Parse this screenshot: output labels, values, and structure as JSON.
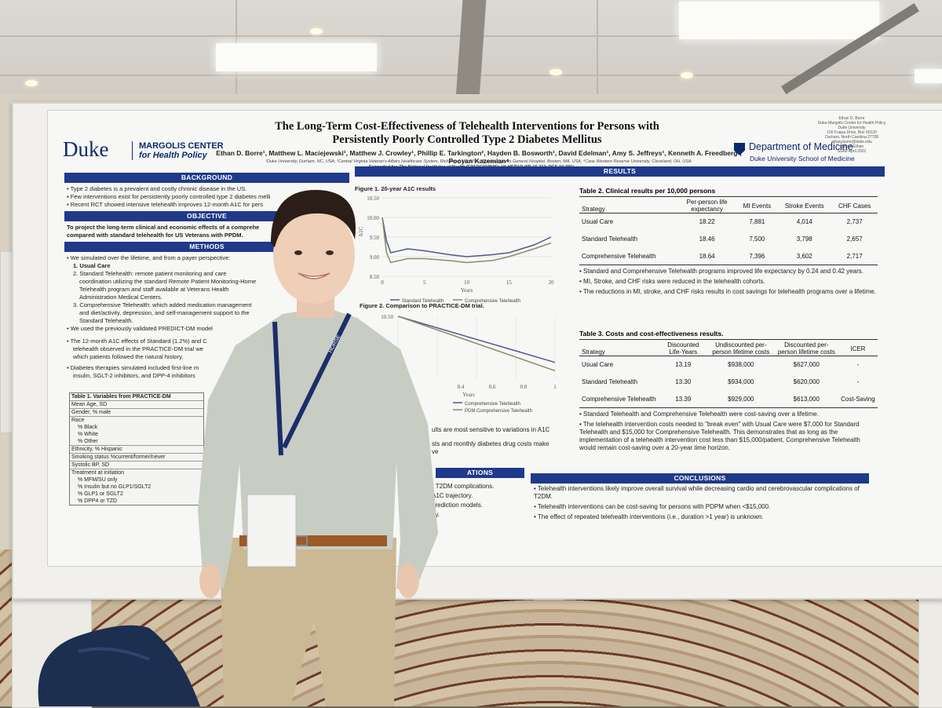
{
  "poster": {
    "title_line1": "The Long-Term Cost-Effectiveness of Telehealth Interventions for Persons with",
    "title_line2": "Persistently Poorly Controlled Type 2 Diabetes Mellitus",
    "authors": "Ethan D. Borre¹, Matthew L. Maciejewski¹, Matthew J. Crowley¹, Phillip E. Tarkington², Hayden B. Bosworth¹, David Edelman¹, Amy S. Jeffreys¹, Kenneth A. Freedberg³, Pooyan Kazemian⁴",
    "affiliations": "¹Duke University, Durham, NC, USA; ²Central Virginia Veteran's Affairs Healthcare System, Richmond, VA, USA; ³Massachusetts General Hospital, Boston, MA, USA; ⁴Case Western Reserve University, Cleveland, OH, USA.",
    "support": "Supported by: The National Institutes of Health (F30 DC019846); VA HSR&D (IIR 16-213; RCS 10-391)",
    "logo_duke": "Duke",
    "logo_margolis_1": "MARGOLIS CENTER",
    "logo_margolis_2": "for Health Policy",
    "dept": "Department of Medicine",
    "dept_sub": "Duke University School of Medicine",
    "corner_1": "Ethan D. Borre",
    "corner_2": "Duke-Margolis Center for Health Policy",
    "corner_3": "Duke University",
    "corner_4": "100 Fuqua Drive, Box 90120",
    "corner_5": "Durham, North Carolina 27708",
    "corner_6": "ethan.borre@duke.edu",
    "corner_7": "@BorreEthan",
    "corner_8": "SGIM April 2022"
  },
  "sections": {
    "background": "BACKGROUND",
    "objective": "OBJECTIVE",
    "methods": "METHODS",
    "results": "RESULTS",
    "conclusions": "CONCLUSIONS",
    "limitations": "ATIONS"
  },
  "background_items": [
    "Type 2 diabetes is a prevalent and costly chronic disease in the US.",
    "Few interventions exist for persistently poorly controlled type 2 diabetes melli",
    "Recent RCT showed intensive telehealth improves 12-month A1C for pers"
  ],
  "objective_text_1": "To project the long-term clinical and economic effects of a comprehe",
  "objective_text_2": "compared with standard telehealth for US Veterans with PPDM.",
  "methods_items": {
    "m1": "We simulated over the lifetime, and from a payer perspective:",
    "m1a": "1. Usual Care",
    "m1b": "2. Standard Telehealth: remote patient monitoring and care",
    "m1b2": "coordination utilizing the standard Remote Patient Monitoring-Home",
    "m1b3": "Telehealth program and staff available at Veterans Health",
    "m1b4": "Administration Medical Centers.",
    "m1c": "3. Comprehensive Telehealth: which added medication management",
    "m1c2": "and diet/activity, depression, and self-management support to the",
    "m1c3": "Standard Telehealth.",
    "m2": "We used the previously validated PREDICT-DM model",
    "m3": "The 12-month A1C effects of Standard (1.2%) and C",
    "m3b": "telehealth observed in the PRACTICE-DM trial we",
    "m3c": "which patients followed the natural history.",
    "m4": "Diabetes therapies simulated included first-line m",
    "m4b": "insulin, SGLT-2 inhibitors, and DPP-4 inhibitors"
  },
  "table1": {
    "title": "Table 1. Variables from PRACTICE-DM",
    "rows": [
      "Mean Age, SD",
      "Gender, % male",
      "Race",
      "% Black",
      "% White",
      "% Other",
      "Ethnicity, % Hispanic",
      "Smoking status %current/former/never",
      "Systolic BP, SD",
      "Treatment at initiation",
      "% MFM/SU only",
      "% Insulin but no GLP1/SGLT2",
      "% GLP1 or SGLT2",
      "% DPP4 or TZD"
    ]
  },
  "figure1": {
    "title": "Figure 1. 20-year A1C results"
  },
  "figure2": {
    "title": "Figure 2. Comparison to PRACTICE-DM trial."
  },
  "chart_data": [
    {
      "type": "line",
      "title": "Figure 1. 20-year A1C results",
      "xlabel": "Years",
      "ylabel": "A1C",
      "xlim": [
        0,
        20
      ],
      "ylim": [
        8.5,
        10.5
      ],
      "x_ticks": [
        "0",
        "5",
        "10",
        "15",
        "20"
      ],
      "y_ticks": [
        "10.50",
        "10.00",
        "9.50",
        "9.00",
        "8.50"
      ],
      "series": [
        {
          "name": "Standard Telehealth",
          "x": [
            0,
            0.5,
            1,
            3,
            5,
            8,
            10,
            13,
            15,
            18,
            20
          ],
          "y": [
            10.0,
            9.4,
            9.1,
            9.2,
            9.15,
            9.05,
            9.0,
            9.05,
            9.1,
            9.3,
            9.5
          ]
        },
        {
          "name": "Comprehensive Telehealth",
          "x": [
            0,
            0.5,
            1,
            3,
            5,
            8,
            10,
            13,
            15,
            18,
            20
          ],
          "y": [
            10.0,
            9.1,
            8.85,
            8.95,
            8.95,
            8.9,
            8.85,
            8.9,
            9.0,
            9.2,
            9.35
          ]
        }
      ],
      "legend": "bottom"
    },
    {
      "type": "line",
      "title": "Figure 2. Comparison to PRACTICE-DM trial.",
      "xlabel": "Years",
      "xlim": [
        0,
        1
      ],
      "x_ticks": [
        "0.4",
        "0.6",
        "0.8",
        "1"
      ],
      "y_ticks": [
        "10.50"
      ],
      "series": [
        {
          "name": "Comprehensive Telehealth",
          "x": [
            0,
            1
          ],
          "y": [
            10.5,
            9.4
          ]
        },
        {
          "name": "PDM Comprehensive Telehealth",
          "x": [
            0,
            1
          ],
          "y": [
            10.5,
            9.2
          ]
        }
      ],
      "legend": "bottom"
    }
  ],
  "results_text": {
    "r1": "ults are most sensitive to variations in A1C",
    "r2": "sts and monthly diabetes drug costs make",
    "r3": "ve"
  },
  "table2": {
    "title": "Table 2. Clinical results per 10,000 persons",
    "headers": [
      "Strategy",
      "Per-person life expectancy",
      "MI Events",
      "Stroke Events",
      "CHF Cases"
    ],
    "rows": [
      [
        "Usual Care",
        "18.22",
        "7,881",
        "4,014",
        "2,737"
      ],
      [
        "Standard Telehealth",
        "18.46",
        "7,500",
        "3,798",
        "2,657"
      ],
      [
        "Comprehensive Telehealth",
        "18.64",
        "7,396",
        "3,602",
        "2,717"
      ]
    ],
    "notes": [
      "Standard and Comprehensive Telehealth programs improved life expectancy by 0.24 and 0.42 years.",
      "MI, Stroke, and CHF risks were reduced in the telehealth cohorts.",
      "The reductions in MI, stroke, and CHF risks results in cost savings for telehealth programs over a lifetime."
    ]
  },
  "table3": {
    "title": "Table 3.  Costs and cost-effectiveness results.",
    "headers": [
      "Strategy",
      "Discounted Life-Years",
      "Undiscounted per-person lifetime costs",
      "Discounted per-person lifetime costs",
      "ICER"
    ],
    "rows": [
      [
        "Usual Care",
        "13.19",
        "$938,000",
        "$627,000",
        "-"
      ],
      [
        "Standard Telehealth",
        "13.30",
        "$934,000",
        "$620,000",
        "-"
      ],
      [
        "Comprehensive Telehealth",
        "13.39",
        "$929,000",
        "$613,000",
        "Cost-Saving"
      ]
    ],
    "notes": [
      "Standard Telehealth and Comprehensive Telehealth were cost-saving over a lifetime.",
      "The telehealth intervention costs needed to \"break even\" with Usual Care were $7,000 for Standard Telehealth and $15,000 for Comprehensive Telehealth. This demonstrates that as long as the implementation of a telehealth intervention cost less than $15,000/patient, Comprehensive Telehealth would remain cost-saving over a 20-year time horizon."
    ]
  },
  "limitations_items": [
    "r T2DM complications.",
    "A1C trajectory.",
    "prediction models.",
    "ay."
  ],
  "conclusions_items": [
    "Telehealth interventions likely improve overall survival while decreasing cardio and cerebrovascular complications of T2DM.",
    "Telehealth interventions can be cost-saving for persons with PDPM when <$15,000.",
    "The effect of repeated telehealth interventions (i.e., duration >1 year) is unknown."
  ],
  "lanyard_text": "HORSE",
  "colors": {
    "duke_blue": "#1f3a8a",
    "poster_bg": "#f7f7f5",
    "shirt": "#c8cdc4",
    "pants": "#cbb894"
  }
}
